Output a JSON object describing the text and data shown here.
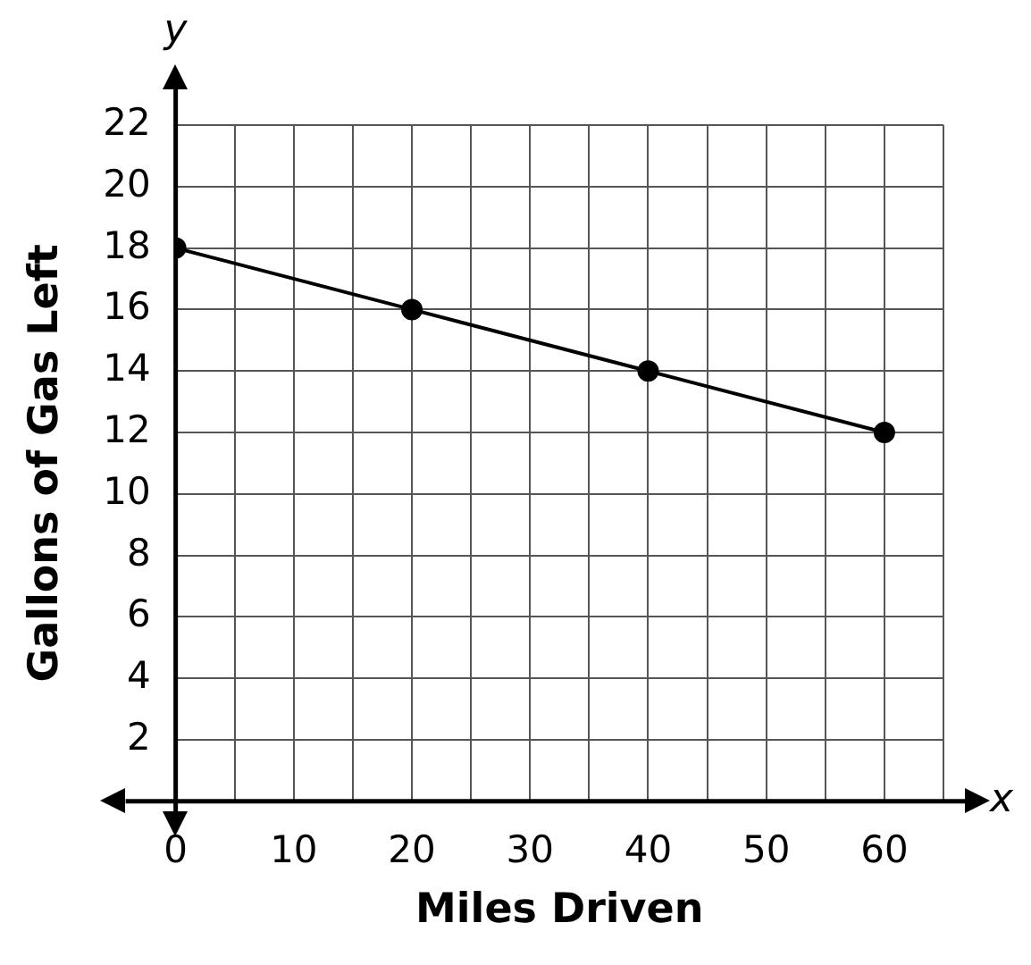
{
  "chart_data": {
    "type": "line",
    "xlabel": "Miles Driven",
    "ylabel": "Gallons of Gas Left",
    "annotations": [
      "x",
      "y"
    ],
    "x": [
      0,
      20,
      40,
      60
    ],
    "series": [
      {
        "color": "#000000",
        "values": [
          18,
          16,
          14,
          12
        ]
      }
    ],
    "xlim": [
      0,
      65
    ],
    "xticks": [
      0,
      {
        "value": 5,
        "label": null
      },
      10,
      {
        "value": 15,
        "label": null
      },
      20,
      {
        "value": 25,
        "label": null
      },
      30,
      {
        "value": 35,
        "label": null
      },
      40,
      {
        "value": 45,
        "label": null
      },
      50,
      {
        "value": 55,
        "label": null
      },
      60,
      {
        "value": 65,
        "label": null
      }
    ],
    "ylim": [
      0,
      22
    ],
    "yticks": [
      {
        "value": 0,
        "label": null
      },
      2,
      4,
      6,
      8,
      10,
      12,
      14,
      16,
      18,
      20,
      22
    ],
    "grid": true,
    "marker": "circle",
    "line_style": "solid",
    "legend": false
  }
}
